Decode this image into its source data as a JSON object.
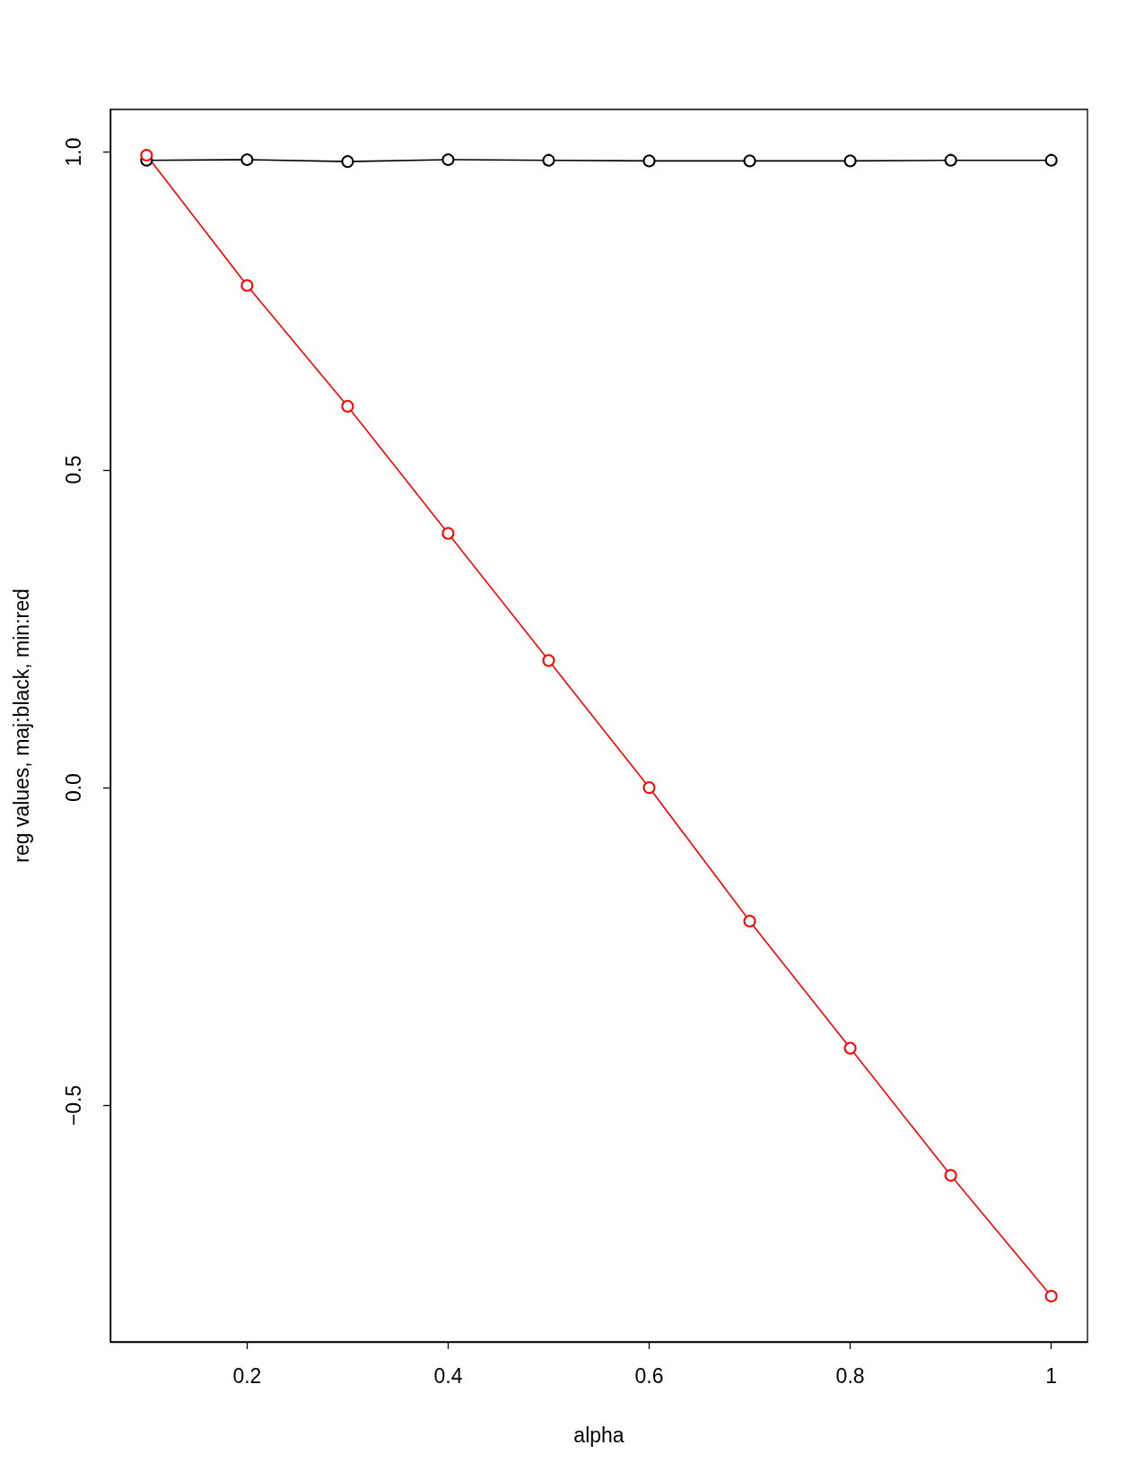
{
  "chart_data": {
    "type": "line",
    "xlabel": "alpha",
    "ylabel": "reg values, maj:black, min:red",
    "x": [
      0.1,
      0.2,
      0.3,
      0.4,
      0.5,
      0.6,
      0.7,
      0.8,
      0.9,
      1.0
    ],
    "series": [
      {
        "color": "#000000",
        "values": [
          0.987,
          0.988,
          0.985,
          0.988,
          0.987,
          0.986,
          0.986,
          0.986,
          0.987,
          0.987
        ]
      },
      {
        "color": "#ff0000",
        "values": [
          0.995,
          0.79,
          0.6,
          0.4,
          0.2,
          0.0,
          -0.21,
          -0.41,
          -0.61,
          -0.8
        ]
      }
    ],
    "xlim": [
      0.064,
      1.036
    ],
    "ylim": [
      -0.872,
      1.067
    ],
    "xticks": [
      0.2,
      0.4,
      0.6,
      0.8,
      1
    ],
    "yticks": [
      {
        "value": -0.5,
        "label": "−0.5"
      },
      {
        "value": 0,
        "label": "0.0"
      },
      {
        "value": 0.5,
        "label": "0.5"
      },
      {
        "value": 1,
        "label": "1.0"
      }
    ],
    "marker": "circle",
    "line_style": "solid"
  }
}
